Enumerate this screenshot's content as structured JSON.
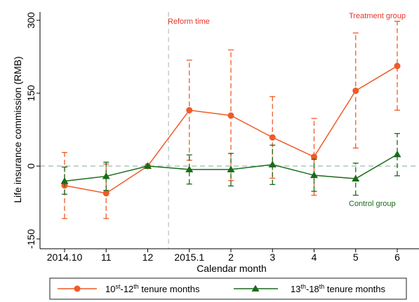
{
  "chart_data": {
    "type": "line",
    "xlabel": "Calendar month",
    "ylabel": "Life insurance commission (RMB)",
    "categories": [
      "2014.10",
      "11",
      "12",
      "2015.1",
      "2",
      "3",
      "4",
      "5",
      "6"
    ],
    "ylim": [
      -150,
      300
    ],
    "yticks": [
      -150,
      0,
      150,
      300
    ],
    "grid": false,
    "legend_position": "bottom",
    "reference_lines": [
      {
        "axis": "y",
        "value": 0,
        "style": "dashed"
      },
      {
        "axis": "x",
        "between": [
          "12",
          "2015.1"
        ],
        "style": "dashed"
      }
    ],
    "annotations": [
      {
        "text": "Reform time",
        "color": "#e8342a"
      },
      {
        "text": "Treatment group",
        "color": "#e8342a"
      },
      {
        "text": "Control group",
        "color": "#1a6b1a"
      }
    ],
    "series": [
      {
        "name": "10st-12th tenure months",
        "legend": {
          "num1": "10",
          "sup1": "st",
          "mid": "-12",
          "sup2": "th",
          "rest": " tenure months"
        },
        "color": "#f05a28",
        "marker": "circle",
        "values": [
          -40,
          -56,
          0,
          115,
          104,
          59,
          19,
          155,
          206
        ],
        "ci_low": [
          -108,
          -108,
          0,
          12,
          -30,
          -25,
          -60,
          37,
          115
        ],
        "ci_high": [
          28,
          4,
          0,
          218,
          239,
          143,
          98,
          274,
          298
        ]
      },
      {
        "name": "13th-18th tenure months",
        "legend": {
          "num1": "13",
          "sup1": "th",
          "mid": "-18",
          "sup2": "th",
          "rest": " tenure months"
        },
        "color": "#1a6b1a",
        "marker": "triangle",
        "values": [
          -31,
          -21,
          0,
          -7,
          -7,
          3,
          -19,
          -26,
          24
        ],
        "ci_low": [
          -58,
          -50,
          0,
          -37,
          -41,
          -38,
          -52,
          -60,
          -20
        ],
        "ci_high": [
          -2,
          8,
          0,
          23,
          26,
          43,
          14,
          6,
          67
        ]
      }
    ]
  }
}
